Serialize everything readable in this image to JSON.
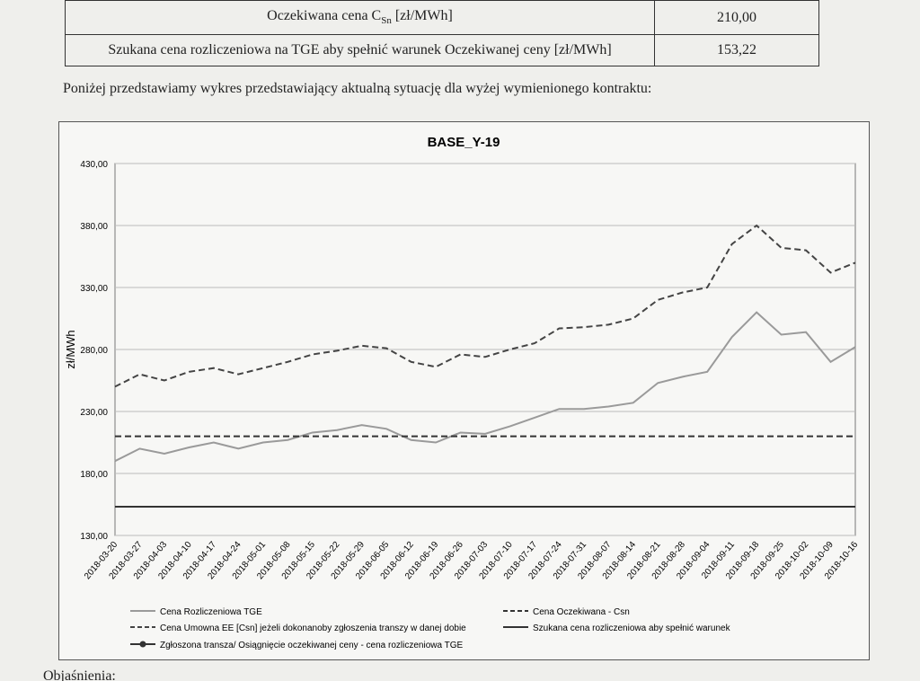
{
  "table": {
    "rows": [
      {
        "label": [
          "Oczekiwana cena C",
          "Sn",
          " [zł/MWh]"
        ],
        "value": "210,00"
      },
      {
        "label": [
          "Szukana cena rozliczeniowa na TGE aby spełnić warunek Oczekiwanej ceny [zł/MWh]"
        ],
        "value": "153,22"
      }
    ]
  },
  "paragraph": "Poniżej przedstawiamy wykres przedstawiający aktualną sytuację dla wyżej wymienionego kontraktu:",
  "chart_data": {
    "type": "line",
    "title": "BASE_Y-19",
    "y_label": "zł/MWh",
    "categories": [
      "2018-03-20",
      "2018-03-27",
      "2018-04-03",
      "2018-04-10",
      "2018-04-17",
      "2018-04-24",
      "2018-05-01",
      "2018-05-08",
      "2018-05-15",
      "2018-05-22",
      "2018-05-29",
      "2018-06-05",
      "2018-06-12",
      "2018-06-19",
      "2018-06-26",
      "2018-07-03",
      "2018-07-10",
      "2018-07-17",
      "2018-07-24",
      "2018-07-31",
      "2018-08-07",
      "2018-08-14",
      "2018-08-21",
      "2018-08-28",
      "2018-09-04",
      "2018-09-11",
      "2018-09-18",
      "2018-09-25",
      "2018-10-02",
      "2018-10-09",
      "2018-10-16"
    ],
    "ylim": [
      130,
      430
    ],
    "yticks": [
      {
        "value": 130,
        "label": "130,00"
      },
      {
        "value": 180,
        "label": "180,00"
      },
      {
        "value": 230,
        "label": "230,00"
      },
      {
        "value": 280,
        "label": "280,00"
      },
      {
        "value": 330,
        "label": "330,00"
      },
      {
        "value": 380,
        "label": "380,00"
      },
      {
        "value": 430,
        "label": "430,00"
      }
    ],
    "grid": true,
    "series": [
      {
        "name": "Cena Rozliczeniowa TGE",
        "color": "#9a9a9a",
        "dash": false,
        "values": [
          190,
          200,
          196,
          201,
          205,
          200,
          205,
          207,
          213,
          215,
          219,
          216,
          207,
          205,
          213,
          212,
          218,
          225,
          232,
          232,
          234,
          237,
          253,
          258,
          262,
          290,
          310,
          292,
          294,
          270,
          282
        ]
      },
      {
        "name": "Cena Umowna EE [Csn] jeżeli dokonanoby zgłoszenia transzy w danej dobie",
        "color": "#444444",
        "dash": true,
        "values": [
          250,
          260,
          255,
          262,
          265,
          260,
          265,
          270,
          276,
          279,
          283,
          281,
          270,
          266,
          276,
          274,
          280,
          285,
          297,
          298,
          300,
          305,
          320,
          326,
          330,
          365,
          380,
          362,
          360,
          342,
          350
        ]
      },
      {
        "name": "Cena Oczekiwana - Csn",
        "color": "#333333",
        "dash": true,
        "values": [
          210,
          210,
          210,
          210,
          210,
          210,
          210,
          210,
          210,
          210,
          210,
          210,
          210,
          210,
          210,
          210,
          210,
          210,
          210,
          210,
          210,
          210,
          210,
          210,
          210,
          210,
          210,
          210,
          210,
          210,
          210
        ]
      },
      {
        "name": "Szukana cena rozliczeniowa aby spełnić warunek",
        "color": "#333333",
        "dash": false,
        "values": [
          153.22,
          153.22,
          153.22,
          153.22,
          153.22,
          153.22,
          153.22,
          153.22,
          153.22,
          153.22,
          153.22,
          153.22,
          153.22,
          153.22,
          153.22,
          153.22,
          153.22,
          153.22,
          153.22,
          153.22,
          153.22,
          153.22,
          153.22,
          153.22,
          153.22,
          153.22,
          153.22,
          153.22,
          153.22,
          153.22,
          153.22
        ]
      },
      {
        "name": "Zgłoszona transza/ Osiągnięcie oczekiwanej ceny - cena rozliczeniowa TGE",
        "color": "#333333",
        "dash": false,
        "marker": true,
        "values": [
          null,
          null,
          null,
          null,
          null,
          null,
          null,
          null,
          null,
          null,
          null,
          null,
          null,
          null,
          null,
          null,
          null,
          null,
          null,
          null,
          null,
          null,
          null,
          null,
          null,
          null,
          null,
          null,
          null,
          null,
          null
        ]
      }
    ]
  },
  "footer": "Objaśnienia:"
}
